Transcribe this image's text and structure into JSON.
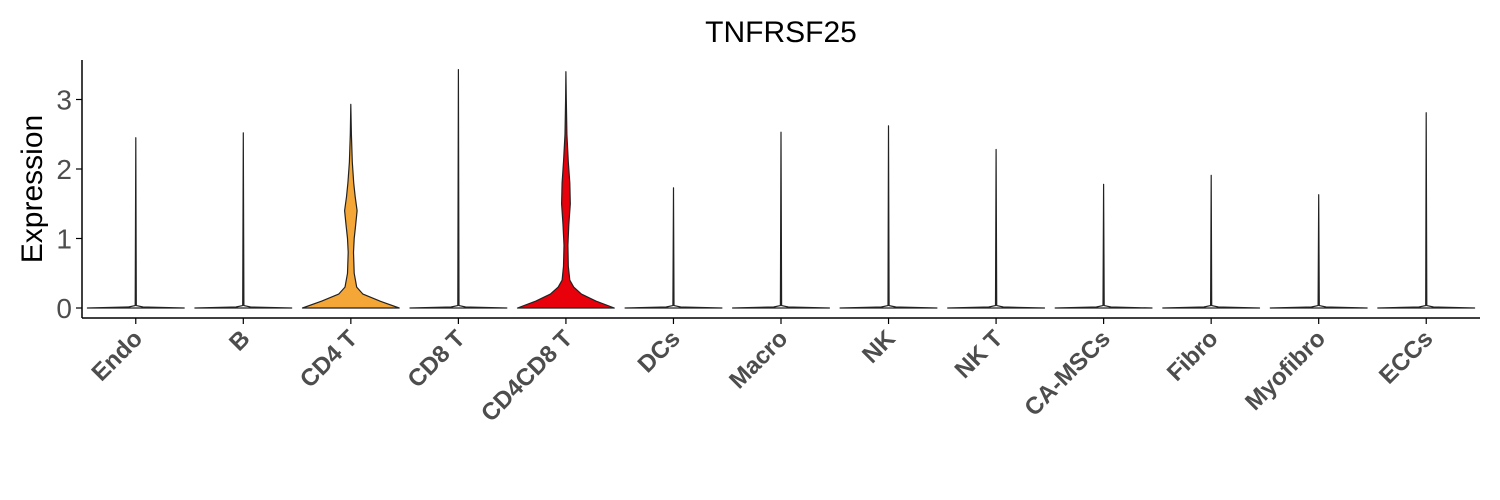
{
  "chart_data": {
    "type": "violin",
    "title": "TNFRSF25",
    "xlabel": "",
    "ylabel": "Expression",
    "ylim": [
      -0.15,
      3.6
    ],
    "yticks": [
      0,
      1,
      2,
      3
    ],
    "legend": "none",
    "grid": false,
    "categories": [
      "Endo",
      "B",
      "CD4 T",
      "CD8 T",
      "CD4CD8 T",
      "DCs",
      "Macro",
      "NK",
      "NK T",
      "CA-MSCs",
      "Fibro",
      "Myofibro",
      "ECCs"
    ],
    "series": [
      {
        "category": "Endo",
        "color": "#ffffff",
        "max": 2.45,
        "profile": []
      },
      {
        "category": "B",
        "color": "#ffffff",
        "max": 2.52,
        "profile": []
      },
      {
        "category": "CD4 T",
        "color": "#f4a636",
        "max": 2.93,
        "profile": [
          [
            0,
            1.0
          ],
          [
            0.1,
            0.6
          ],
          [
            0.2,
            0.25
          ],
          [
            0.3,
            0.12
          ],
          [
            0.5,
            0.07
          ],
          [
            0.8,
            0.055
          ],
          [
            1.0,
            0.07
          ],
          [
            1.2,
            0.1
          ],
          [
            1.4,
            0.13
          ],
          [
            1.6,
            0.09
          ],
          [
            1.8,
            0.06
          ],
          [
            2.1,
            0.03
          ],
          [
            2.5,
            0.012
          ],
          [
            2.93,
            0
          ]
        ]
      },
      {
        "category": "CD8 T",
        "color": "#ffffff",
        "max": 3.43,
        "profile": []
      },
      {
        "category": "CD4CD8 T",
        "color": "#e8000b",
        "max": 3.4,
        "profile": [
          [
            0,
            1.0
          ],
          [
            0.1,
            0.62
          ],
          [
            0.2,
            0.32
          ],
          [
            0.3,
            0.16
          ],
          [
            0.4,
            0.08
          ],
          [
            0.6,
            0.05
          ],
          [
            0.9,
            0.04
          ],
          [
            1.2,
            0.06
          ],
          [
            1.5,
            0.09
          ],
          [
            1.8,
            0.08
          ],
          [
            2.1,
            0.05
          ],
          [
            2.5,
            0.02
          ],
          [
            3.0,
            0.007
          ],
          [
            3.4,
            0
          ]
        ]
      },
      {
        "category": "DCs",
        "color": "#ffffff",
        "max": 1.73,
        "profile": []
      },
      {
        "category": "Macro",
        "color": "#ffffff",
        "max": 2.53,
        "profile": []
      },
      {
        "category": "NK",
        "color": "#ffffff",
        "max": 2.62,
        "profile": []
      },
      {
        "category": "NK T",
        "color": "#ffffff",
        "max": 2.28,
        "profile": []
      },
      {
        "category": "CA-MSCs",
        "color": "#ffffff",
        "max": 1.78,
        "profile": []
      },
      {
        "category": "Fibro",
        "color": "#ffffff",
        "max": 1.91,
        "profile": []
      },
      {
        "category": "Myofibro",
        "color": "#ffffff",
        "max": 1.63,
        "profile": []
      },
      {
        "category": "ECCs",
        "color": "#ffffff",
        "max": 2.81,
        "profile": []
      }
    ]
  }
}
